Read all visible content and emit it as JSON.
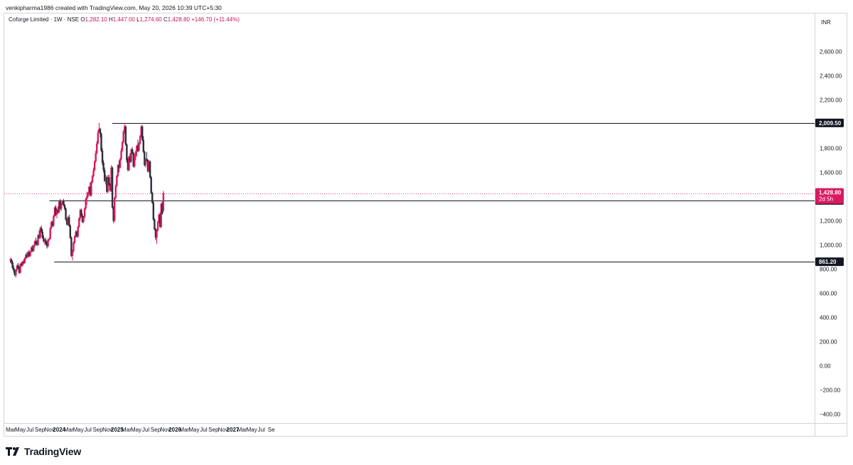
{
  "header": {
    "text": "venkipharma1986 created with TradingView.com, May 20, 2026 10:39 UTC+5:30"
  },
  "legend": {
    "symbol": "Coforge Limited · 1W · NSE",
    "open_label": "O",
    "open": "1,282.10",
    "high_label": "H",
    "high": "1,447.00",
    "low_label": "L",
    "low": "1,274.60",
    "close_label": "C",
    "close": "1,428.80",
    "change": "+146.70 (+11.44%)"
  },
  "currency": "INR",
  "footer": {
    "brand": "TradingView"
  },
  "colors": {
    "up": "#d81b60",
    "down": "#2a2e39",
    "level_line": "#131722",
    "price_line": "#e91e63"
  },
  "chart_data": {
    "type": "candlestick",
    "title": "Coforge Limited · 1W · NSE",
    "y_unit": "INR",
    "ylim": [
      -450,
      2820
    ],
    "y_ticks": [
      "2,600.00",
      "2,400.00",
      "2,200.00",
      "1,800.00",
      "1,600.00",
      "1,200.00",
      "1,000.00",
      "800.00",
      "600.00",
      "400.00",
      "200.00",
      "0.00",
      "−200.00",
      "−400.00"
    ],
    "y_tick_values": [
      2600,
      2400,
      2200,
      1800,
      1600,
      1200,
      1000,
      800,
      600,
      400,
      200,
      0,
      -200,
      -400
    ],
    "x_range": [
      "2023-03-01",
      "2027-09-25"
    ],
    "x_ticks": [
      {
        "label": "Mar",
        "date": "2023-03-01",
        "bold": false
      },
      {
        "label": "May",
        "date": "2023-05-01",
        "bold": false
      },
      {
        "label": "Jul",
        "date": "2023-07-01",
        "bold": false
      },
      {
        "label": "Sep",
        "date": "2023-09-01",
        "bold": false
      },
      {
        "label": "Nov",
        "date": "2023-11-01",
        "bold": false
      },
      {
        "label": "2024",
        "date": "2024-01-01",
        "bold": true
      },
      {
        "label": "Mar",
        "date": "2024-03-01",
        "bold": false
      },
      {
        "label": "May",
        "date": "2024-05-01",
        "bold": false
      },
      {
        "label": "Jul",
        "date": "2024-07-01",
        "bold": false
      },
      {
        "label": "Sep",
        "date": "2024-09-01",
        "bold": false
      },
      {
        "label": "Nov",
        "date": "2024-11-01",
        "bold": false
      },
      {
        "label": "2025",
        "date": "2025-01-01",
        "bold": true
      },
      {
        "label": "Mar",
        "date": "2025-03-01",
        "bold": false
      },
      {
        "label": "May",
        "date": "2025-05-01",
        "bold": false
      },
      {
        "label": "Jul",
        "date": "2025-07-01",
        "bold": false
      },
      {
        "label": "Sep",
        "date": "2025-09-01",
        "bold": false
      },
      {
        "label": "Nov",
        "date": "2025-11-01",
        "bold": false
      },
      {
        "label": "2026",
        "date": "2026-01-01",
        "bold": true
      },
      {
        "label": "Mar",
        "date": "2026-03-01",
        "bold": false
      },
      {
        "label": "May",
        "date": "2026-05-01",
        "bold": false
      },
      {
        "label": "Jul",
        "date": "2026-07-01",
        "bold": false
      },
      {
        "label": "Sep",
        "date": "2026-09-01",
        "bold": false
      },
      {
        "label": "Nov",
        "date": "2026-11-01",
        "bold": false
      },
      {
        "label": "2027",
        "date": "2027-01-01",
        "bold": true
      },
      {
        "label": "Mar",
        "date": "2027-03-01",
        "bold": false
      },
      {
        "label": "May",
        "date": "2027-05-01",
        "bold": false
      },
      {
        "label": "Jul",
        "date": "2027-07-01",
        "bold": false
      },
      {
        "label": "Se",
        "date": "2027-09-01",
        "bold": false
      }
    ],
    "levels": [
      {
        "value": 2009.5,
        "label": "2,009.50",
        "start": "2024-12-01"
      },
      {
        "value": 1368.2,
        "label": "1,368.20",
        "start": "2023-11-01"
      },
      {
        "value": 861.2,
        "label": "861.20",
        "start": "2023-12-01"
      }
    ],
    "current_price": {
      "value": 1428.8,
      "label": "1,428.80",
      "countdown": "2d 5h"
    },
    "week_dates": {
      "first": "2023-02-27",
      "step_days": 7
    },
    "ohlc": [
      [
        870,
        895,
        850,
        880
      ],
      [
        880,
        890,
        840,
        855
      ],
      [
        855,
        870,
        800,
        810
      ],
      [
        810,
        830,
        770,
        790
      ],
      [
        790,
        800,
        740,
        750
      ],
      [
        750,
        800,
        730,
        795
      ],
      [
        795,
        840,
        780,
        830
      ],
      [
        830,
        850,
        800,
        810
      ],
      [
        810,
        825,
        760,
        770
      ],
      [
        770,
        850,
        765,
        845
      ],
      [
        845,
        860,
        820,
        830
      ],
      [
        830,
        870,
        820,
        860
      ],
      [
        860,
        880,
        840,
        850
      ],
      [
        850,
        900,
        845,
        890
      ],
      [
        890,
        930,
        880,
        920
      ],
      [
        920,
        940,
        890,
        900
      ],
      [
        900,
        950,
        895,
        940
      ],
      [
        940,
        960,
        900,
        910
      ],
      [
        910,
        950,
        900,
        945
      ],
      [
        945,
        990,
        940,
        980
      ],
      [
        980,
        1000,
        940,
        950
      ],
      [
        950,
        1000,
        945,
        995
      ],
      [
        995,
        1040,
        980,
        1030
      ],
      [
        1030,
        1060,
        1000,
        1010
      ],
      [
        1010,
        1040,
        990,
        1000
      ],
      [
        1000,
        1090,
        995,
        1080
      ],
      [
        1080,
        1120,
        1050,
        1060
      ],
      [
        1060,
        1150,
        1050,
        1140
      ],
      [
        1140,
        1160,
        1100,
        1110
      ],
      [
        1110,
        1130,
        1050,
        1060
      ],
      [
        1060,
        1080,
        1020,
        1030
      ],
      [
        1030,
        1050,
        1000,
        1040
      ],
      [
        1040,
        1060,
        1000,
        1010
      ],
      [
        1010,
        1030,
        970,
        990
      ],
      [
        990,
        1050,
        980,
        1045
      ],
      [
        1045,
        1060,
        1030,
        1050
      ],
      [
        1050,
        1150,
        1045,
        1140
      ],
      [
        1140,
        1200,
        1130,
        1190
      ],
      [
        1190,
        1200,
        1150,
        1160
      ],
      [
        1160,
        1250,
        1150,
        1240
      ],
      [
        1240,
        1320,
        1230,
        1310
      ],
      [
        1310,
        1330,
        1240,
        1250
      ],
      [
        1250,
        1300,
        1220,
        1290
      ],
      [
        1290,
        1320,
        1260,
        1270
      ],
      [
        1270,
        1370,
        1260,
        1360
      ],
      [
        1360,
        1380,
        1290,
        1300
      ],
      [
        1300,
        1350,
        1280,
        1340
      ],
      [
        1340,
        1370,
        1330,
        1365
      ],
      [
        1365,
        1380,
        1320,
        1330
      ],
      [
        1330,
        1340,
        1290,
        1300
      ],
      [
        1300,
        1310,
        1200,
        1210
      ],
      [
        1210,
        1220,
        1160,
        1170
      ],
      [
        1170,
        1240,
        1160,
        1230
      ],
      [
        1230,
        1250,
        1150,
        1160
      ],
      [
        1160,
        1170,
        1050,
        1060
      ],
      [
        1060,
        1070,
        900,
        910
      ],
      [
        910,
        960,
        870,
        950
      ],
      [
        950,
        1030,
        940,
        1020
      ],
      [
        1020,
        1080,
        1010,
        1070
      ],
      [
        1070,
        1120,
        1060,
        1110
      ],
      [
        1110,
        1120,
        1060,
        1070
      ],
      [
        1070,
        1160,
        1060,
        1150
      ],
      [
        1150,
        1230,
        1140,
        1220
      ],
      [
        1220,
        1300,
        1200,
        1290
      ],
      [
        1290,
        1300,
        1230,
        1240
      ],
      [
        1240,
        1260,
        1180,
        1190
      ],
      [
        1190,
        1240,
        1180,
        1230
      ],
      [
        1230,
        1310,
        1220,
        1300
      ],
      [
        1300,
        1390,
        1290,
        1380
      ],
      [
        1380,
        1440,
        1330,
        1400
      ],
      [
        1400,
        1440,
        1390,
        1430
      ],
      [
        1430,
        1490,
        1420,
        1480
      ],
      [
        1480,
        1520,
        1400,
        1410
      ],
      [
        1410,
        1530,
        1400,
        1520
      ],
      [
        1520,
        1580,
        1510,
        1570
      ],
      [
        1570,
        1640,
        1560,
        1620
      ],
      [
        1620,
        1700,
        1610,
        1690
      ],
      [
        1690,
        1780,
        1680,
        1760
      ],
      [
        1760,
        1860,
        1750,
        1840
      ],
      [
        1840,
        1950,
        1830,
        1930
      ],
      [
        1930,
        2009.5,
        1930,
        1960
      ],
      [
        1960,
        1970,
        1890,
        1920
      ],
      [
        1920,
        1930,
        1770,
        1780
      ],
      [
        1780,
        1800,
        1660,
        1680
      ],
      [
        1680,
        1700,
        1600,
        1620
      ],
      [
        1620,
        1640,
        1520,
        1530
      ],
      [
        1530,
        1580,
        1500,
        1560
      ],
      [
        1560,
        1570,
        1430,
        1440
      ],
      [
        1440,
        1580,
        1430,
        1560
      ],
      [
        1560,
        1580,
        1490,
        1500
      ],
      [
        1500,
        1510,
        1440,
        1450
      ],
      [
        1450,
        1660,
        1440,
        1640
      ],
      [
        1640,
        1650,
        1300,
        1310
      ],
      [
        1310,
        1320,
        1180,
        1200
      ],
      [
        1200,
        1400,
        1190,
        1390
      ],
      [
        1390,
        1500,
        1380,
        1490
      ],
      [
        1490,
        1580,
        1480,
        1570
      ],
      [
        1570,
        1670,
        1560,
        1660
      ],
      [
        1660,
        1700,
        1600,
        1640
      ],
      [
        1640,
        1720,
        1630,
        1710
      ],
      [
        1710,
        1800,
        1700,
        1780
      ],
      [
        1780,
        1860,
        1770,
        1850
      ],
      [
        1850,
        1950,
        1840,
        1940
      ],
      [
        1940,
        2000,
        1920,
        1980
      ],
      [
        1980,
        1990,
        1820,
        1830
      ],
      [
        1830,
        1840,
        1680,
        1700
      ],
      [
        1700,
        1720,
        1610,
        1620
      ],
      [
        1620,
        1740,
        1610,
        1730
      ],
      [
        1730,
        1760,
        1680,
        1690
      ],
      [
        1690,
        1800,
        1680,
        1790
      ],
      [
        1790,
        1810,
        1750,
        1760
      ],
      [
        1760,
        1770,
        1640,
        1650
      ],
      [
        1650,
        1750,
        1640,
        1740
      ],
      [
        1740,
        1780,
        1700,
        1770
      ],
      [
        1770,
        1830,
        1730,
        1820
      ],
      [
        1820,
        1870,
        1770,
        1780
      ],
      [
        1780,
        1850,
        1770,
        1840
      ],
      [
        1840,
        1910,
        1830,
        1900
      ],
      [
        1900,
        1992,
        1890,
        1980
      ],
      [
        1980,
        1990,
        1860,
        1870
      ],
      [
        1870,
        1900,
        1760,
        1770
      ],
      [
        1770,
        1780,
        1650,
        1660
      ],
      [
        1660,
        1720,
        1640,
        1710
      ],
      [
        1710,
        1770,
        1690,
        1700
      ],
      [
        1700,
        1710,
        1600,
        1610
      ],
      [
        1610,
        1700,
        1600,
        1690
      ],
      [
        1690,
        1700,
        1550,
        1560
      ],
      [
        1560,
        1570,
        1420,
        1430
      ],
      [
        1430,
        1440,
        1340,
        1350
      ],
      [
        1350,
        1360,
        1200,
        1210
      ],
      [
        1210,
        1220,
        1120,
        1130
      ],
      [
        1130,
        1140,
        1040,
        1060
      ],
      [
        1060,
        1130,
        1010,
        1120
      ],
      [
        1120,
        1200,
        1110,
        1190
      ],
      [
        1190,
        1260,
        1180,
        1250
      ],
      [
        1250,
        1270,
        1140,
        1150
      ],
      [
        1150,
        1350,
        1140,
        1340
      ],
      [
        1340,
        1360,
        1250,
        1260
      ],
      [
        1282.1,
        1447,
        1274.6,
        1428.8
      ]
    ]
  }
}
